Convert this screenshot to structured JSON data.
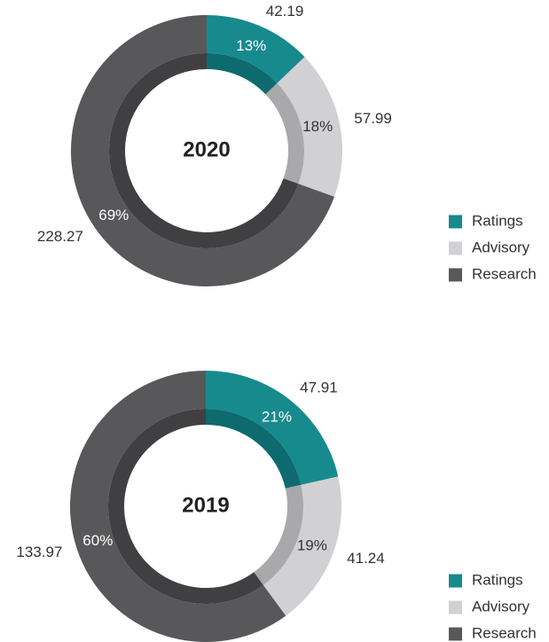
{
  "chart_data": [
    {
      "type": "donut",
      "title": "2020",
      "categories": [
        "Ratings",
        "Advisory",
        "Research"
      ],
      "values": [
        42.19,
        57.99,
        228.27
      ],
      "percents": [
        13,
        18,
        69
      ],
      "percent_labels": [
        "13%",
        "18%",
        "69%"
      ],
      "colors": [
        "#178a8e",
        "#d1d1d3",
        "#58585a"
      ],
      "inner_colors": [
        "#0d6a6e",
        "#a9a9ab",
        "#404042"
      ]
    },
    {
      "type": "donut",
      "title": "2019",
      "categories": [
        "Ratings",
        "Advisory",
        "Research"
      ],
      "values": [
        47.91,
        41.24,
        133.97
      ],
      "percents": [
        21,
        19,
        60
      ],
      "percent_labels": [
        "21%",
        "19%",
        "60%"
      ],
      "colors": [
        "#178a8e",
        "#d1d1d3",
        "#58585a"
      ],
      "inner_colors": [
        "#0d6a6e",
        "#a9a9ab",
        "#404042"
      ]
    }
  ]
}
